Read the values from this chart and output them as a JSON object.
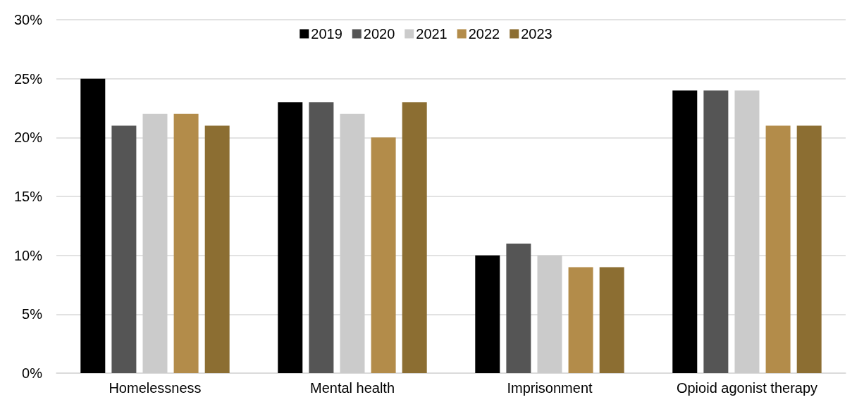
{
  "chart_data": {
    "type": "bar",
    "categories": [
      "Homelessness",
      "Mental health",
      "Imprisonment",
      "Opioid agonist therapy"
    ],
    "series": [
      {
        "name": "2019",
        "color": "#000000",
        "values": [
          25,
          23,
          10,
          24
        ]
      },
      {
        "name": "2020",
        "color": "#555555",
        "values": [
          21,
          23,
          11,
          24
        ]
      },
      {
        "name": "2021",
        "color": "#cbcbcb",
        "values": [
          22,
          22,
          10,
          24
        ]
      },
      {
        "name": "2022",
        "color": "#b38c4a",
        "values": [
          22,
          20,
          9,
          21
        ]
      },
      {
        "name": "2023",
        "color": "#8c6e32",
        "values": [
          21,
          23,
          9,
          21
        ]
      }
    ],
    "ylim": [
      0,
      30
    ],
    "yticks": [
      {
        "value": 0,
        "label": "0%"
      },
      {
        "value": 5,
        "label": "5%"
      },
      {
        "value": 10,
        "label": "10%"
      },
      {
        "value": 15,
        "label": "15%"
      },
      {
        "value": 20,
        "label": "20%"
      },
      {
        "value": 25,
        "label": "25%"
      },
      {
        "value": 30,
        "label": "30%"
      }
    ],
    "grid": "y",
    "legend": "top"
  }
}
